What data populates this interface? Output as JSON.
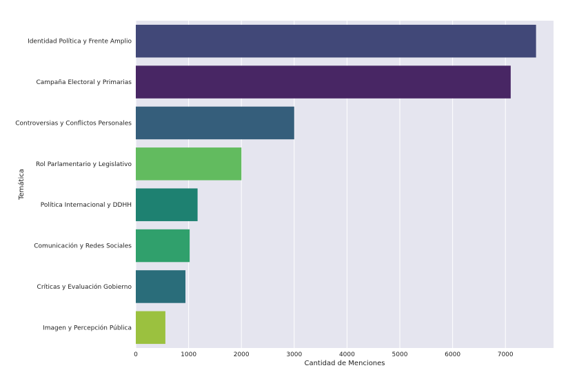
{
  "chart_data": {
    "type": "bar",
    "orientation": "horizontal",
    "title": "",
    "xlabel": "Cantidad de Menciones",
    "ylabel": "Temática",
    "xlim": [
      0,
      8000
    ],
    "xticks": [
      0,
      1000,
      2000,
      3000,
      4000,
      5000,
      6000,
      7000
    ],
    "grid": true,
    "background": "#e5e5ef",
    "categories": [
      "Identidad Política y Frente Amplio",
      "Campaña Electoral y Primarias",
      "Controversias y Conflictos Personales",
      "Rol Parlamentario y Legislativo",
      "Política Internacional y DDHH",
      "Comunicación y Redes Sociales",
      "Críticas y Evaluación Gobierno",
      "Imagen y Percepción Pública"
    ],
    "values": [
      7580,
      7100,
      3000,
      2000,
      1170,
      1020,
      940,
      560
    ],
    "colors": [
      "#414878",
      "#482664",
      "#355e7b",
      "#62bb5f",
      "#1e8171",
      "#30a06c",
      "#2a6d7a",
      "#9bc13f"
    ]
  }
}
